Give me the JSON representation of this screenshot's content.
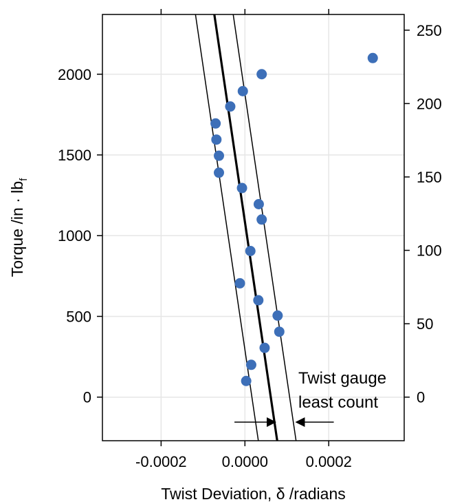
{
  "chart_data": {
    "type": "scatter",
    "title": "",
    "xlabel": "Twist Deviation, δ /radians",
    "ylabel": "Torque /in · lb",
    "ylabel_subscript": "f",
    "right_axis_label": "",
    "xlim": [
      -0.00034,
      0.00038
    ],
    "ylim": [
      -270,
      2370
    ],
    "right_ylim": [
      -29.7,
      260.7
    ],
    "x_ticks": [
      -0.0002,
      0.0,
      0.0002
    ],
    "x_tick_labels": [
      "-0.0002",
      "0.0000",
      "0.0002"
    ],
    "y_ticks": [
      0,
      500,
      1000,
      1500,
      2000
    ],
    "y_tick_labels": [
      "0",
      "500",
      "1000",
      "1500",
      "2000"
    ],
    "right_y_ticks": [
      0,
      50,
      100,
      150,
      200,
      250
    ],
    "right_y_tick_labels": [
      "0",
      "50",
      "100",
      "150",
      "200",
      "250"
    ],
    "grid": true,
    "point_color": "#3d6fb8",
    "points": [
      {
        "x": 0.000305,
        "y": 2100
      },
      {
        "x": 4e-05,
        "y": 2000
      },
      {
        "x": -5e-06,
        "y": 1895
      },
      {
        "x": -3.5e-05,
        "y": 1800
      },
      {
        "x": -7e-05,
        "y": 1695
      },
      {
        "x": -6.8e-05,
        "y": 1595
      },
      {
        "x": -6.2e-05,
        "y": 1495
      },
      {
        "x": -6.2e-05,
        "y": 1390
      },
      {
        "x": -7e-06,
        "y": 1295
      },
      {
        "x": 3.3e-05,
        "y": 1195
      },
      {
        "x": 4e-05,
        "y": 1100
      },
      {
        "x": 1.3e-05,
        "y": 905
      },
      {
        "x": -1.2e-05,
        "y": 705
      },
      {
        "x": 3.2e-05,
        "y": 600
      },
      {
        "x": 7.8e-05,
        "y": 505
      },
      {
        "x": 8.2e-05,
        "y": 405
      },
      {
        "x": 4.7e-05,
        "y": 305
      },
      {
        "x": 1.5e-05,
        "y": 200
      },
      {
        "x": 3e-06,
        "y": 100
      }
    ],
    "fit_line": {
      "x_at_ymin": 7.7e-05,
      "x_at_ymax": -7.3e-05
    },
    "band_lines": [
      {
        "x_at_ymin": 3.2e-05,
        "x_at_ymax": -0.000118
      },
      {
        "x_at_ymin": 0.000122,
        "x_at_ymax": -2.8e-05
      }
    ],
    "annotation": {
      "lines": [
        "Twist gauge",
        "least count"
      ],
      "arrow_y": -155,
      "left_arrow_from_x": -2.5e-05,
      "left_arrow_to_x": 7.5e-05,
      "right_arrow_from_x": 0.000212,
      "right_arrow_to_x": 0.00012
    }
  }
}
